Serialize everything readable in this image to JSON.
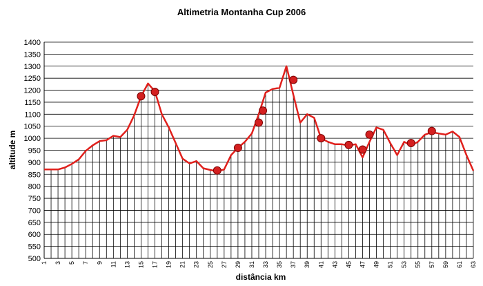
{
  "chart_data": {
    "type": "line",
    "title": "Altimetria Montanha Cup 2006",
    "xlabel": "distância km",
    "ylabel": "altitude m",
    "ylim": [
      500,
      1400
    ],
    "y_ticks": [
      500,
      550,
      600,
      650,
      700,
      750,
      800,
      850,
      900,
      950,
      1000,
      1050,
      1100,
      1150,
      1200,
      1250,
      1300,
      1350,
      1400
    ],
    "x_ticks": [
      1,
      3,
      5,
      7,
      9,
      11,
      13,
      15,
      17,
      19,
      21,
      23,
      25,
      27,
      29,
      31,
      33,
      35,
      37,
      39,
      41,
      43,
      45,
      47,
      49,
      51,
      53,
      55,
      57,
      59,
      61,
      63
    ],
    "grid": true,
    "colors": {
      "line": "#e0201c",
      "marker": "#d42020",
      "marker_edge": "#7a0000",
      "bars": "#000000"
    },
    "series": [
      {
        "x": [
          1,
          2,
          3,
          4,
          5,
          6,
          7,
          8,
          9,
          10,
          11,
          12,
          13,
          14,
          15,
          16,
          17,
          18,
          19,
          20,
          21,
          22,
          23,
          24,
          25,
          26,
          27,
          28,
          29,
          30,
          31,
          32,
          33,
          34,
          35,
          36,
          37,
          38,
          39,
          40,
          41,
          42,
          43,
          44,
          45,
          46,
          47,
          48,
          49,
          50,
          51,
          52,
          53,
          54,
          55,
          56,
          57,
          58,
          59,
          60,
          61,
          62,
          63
        ],
        "values": [
          870,
          870,
          870,
          878,
          893,
          912,
          947,
          970,
          988,
          992,
          1010,
          1005,
          1035,
          1095,
          1175,
          1228,
          1195,
          1100,
          1045,
          980,
          915,
          895,
          905,
          875,
          868,
          862,
          870,
          930,
          960,
          985,
          1020,
          1100,
          1190,
          1205,
          1210,
          1300,
          1180,
          1065,
          1100,
          1085,
          1000,
          985,
          975,
          975,
          970,
          975,
          920,
          985,
          1045,
          1035,
          980,
          930,
          985,
          970,
          985,
          1015,
          1025,
          1020,
          1015,
          1028,
          1005,
          930,
          865
        ]
      }
    ],
    "markers": {
      "x": [
        15,
        17,
        26,
        29,
        32,
        32.6,
        37,
        41,
        45,
        47,
        48,
        54,
        57
      ],
      "values": [
        1175,
        1193,
        866,
        960,
        1065,
        1115,
        1243,
        1000,
        972,
        953,
        1015,
        980,
        1030
      ]
    }
  }
}
